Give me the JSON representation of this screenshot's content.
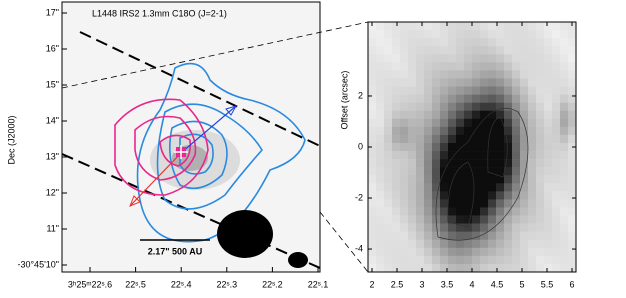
{
  "chart_data": [
    {
      "type": "contour-map",
      "title": "L1448 IRS2 1.3mm C18O (J=2-1)",
      "ylabel": "Dec (J2000)",
      "scale_bar_label": "2.17\" 500 AU",
      "xtick_labels": [
        "3ʰ25ᵐ22ˢ.6",
        "22ˢ.5",
        "22ˢ.4",
        "22ˢ.3",
        "22ˢ.2",
        "22ˢ.1"
      ],
      "ytick_labels": [
        "-30°45'10\"",
        "11\"",
        "12\"",
        "13\"",
        "14\"",
        "15\"",
        "16\"",
        "17\""
      ]
    },
    {
      "type": "heatmap",
      "ylabel": "Offset (arcsec)",
      "xlim": [
        1.92,
        6.08
      ],
      "xticks": [
        2,
        2.5,
        3,
        3.5,
        4,
        4.5,
        5,
        5.5,
        6
      ],
      "ylim": [
        -4.9,
        4.9
      ],
      "yticks": [
        -4,
        -2,
        0,
        2
      ]
    }
  ]
}
